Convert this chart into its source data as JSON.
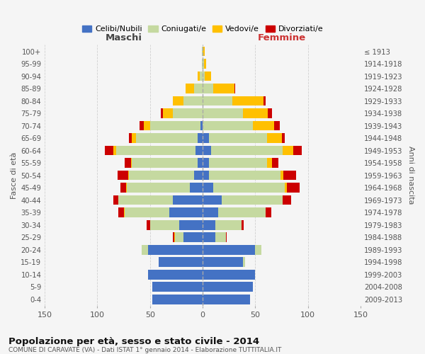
{
  "age_groups": [
    "100+",
    "95-99",
    "90-94",
    "85-89",
    "80-84",
    "75-79",
    "70-74",
    "65-69",
    "60-64",
    "55-59",
    "50-54",
    "45-49",
    "40-44",
    "35-39",
    "30-34",
    "25-29",
    "20-24",
    "15-19",
    "10-14",
    "5-9",
    "0-4"
  ],
  "birth_years": [
    "≤ 1913",
    "1914-1918",
    "1919-1923",
    "1924-1928",
    "1929-1933",
    "1934-1938",
    "1939-1943",
    "1944-1948",
    "1949-1953",
    "1954-1958",
    "1959-1963",
    "1964-1968",
    "1969-1973",
    "1974-1978",
    "1979-1983",
    "1984-1988",
    "1989-1993",
    "1994-1998",
    "1999-2003",
    "2004-2008",
    "2009-2013"
  ],
  "male_celibi": [
    0,
    0,
    0,
    0,
    0,
    0,
    2,
    5,
    7,
    5,
    8,
    12,
    28,
    32,
    22,
    18,
    52,
    42,
    52,
    48,
    48
  ],
  "male_coniugati": [
    1,
    1,
    3,
    8,
    18,
    28,
    48,
    58,
    75,
    62,
    62,
    60,
    52,
    42,
    28,
    8,
    6,
    0,
    0,
    0,
    0
  ],
  "male_vedovi": [
    0,
    0,
    2,
    8,
    10,
    10,
    6,
    4,
    3,
    1,
    1,
    1,
    0,
    1,
    0,
    1,
    0,
    0,
    0,
    0,
    0
  ],
  "male_divorziati": [
    0,
    0,
    0,
    0,
    0,
    2,
    4,
    3,
    8,
    6,
    10,
    5,
    5,
    5,
    3,
    1,
    0,
    0,
    0,
    0,
    0
  ],
  "female_celibi": [
    0,
    0,
    0,
    0,
    0,
    0,
    0,
    6,
    8,
    6,
    6,
    10,
    18,
    15,
    12,
    12,
    50,
    38,
    50,
    48,
    45
  ],
  "female_coniugati": [
    0,
    1,
    2,
    10,
    28,
    38,
    48,
    55,
    68,
    55,
    68,
    68,
    58,
    45,
    25,
    10,
    6,
    2,
    0,
    0,
    0
  ],
  "female_vedovi": [
    2,
    2,
    6,
    20,
    30,
    24,
    20,
    14,
    10,
    5,
    3,
    2,
    0,
    0,
    0,
    0,
    0,
    0,
    0,
    0,
    0
  ],
  "female_divorziati": [
    0,
    0,
    0,
    1,
    2,
    4,
    5,
    3,
    8,
    6,
    12,
    12,
    8,
    5,
    2,
    1,
    0,
    0,
    0,
    0,
    0
  ],
  "color_celibi": "#4472c4",
  "color_coniugati": "#c5d9a0",
  "color_vedovi": "#ffc000",
  "color_divorziati": "#cc0000",
  "title": "Popolazione per età, sesso e stato civile - 2014",
  "subtitle": "COMUNE DI CARAVATE (VA) - Dati ISTAT 1° gennaio 2014 - Elaborazione TUTTITALIA.IT",
  "xlabel_left": "Maschi",
  "xlabel_right": "Femmine",
  "ylabel_left": "Fasce di età",
  "ylabel_right": "Anni di nascita",
  "legend_labels": [
    "Celibi/Nubili",
    "Coniugati/e",
    "Vedovi/e",
    "Divorziati/e"
  ],
  "xlim": 150,
  "background_color": "#f5f5f5",
  "grid_color": "#cccccc"
}
